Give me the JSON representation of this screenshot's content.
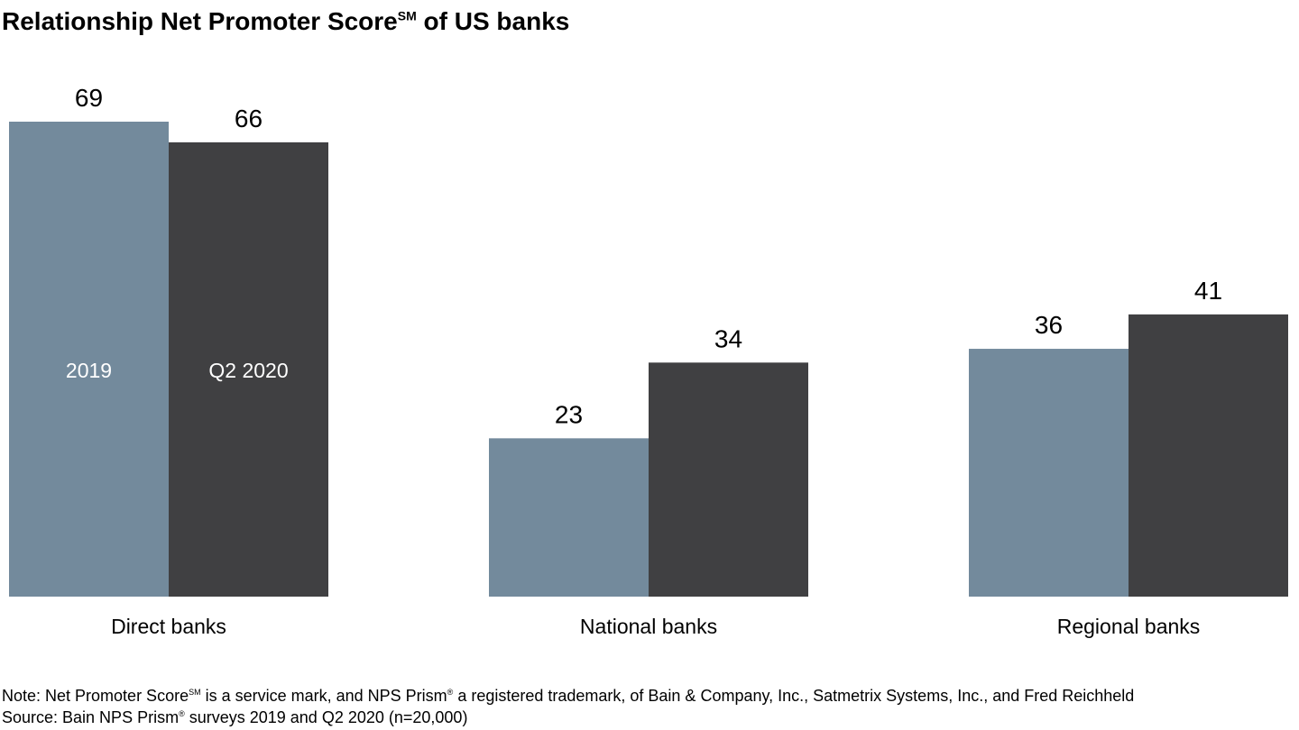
{
  "title": {
    "main": "Relationship Net Promoter Score",
    "sup": "SM",
    "rest": " of US banks"
  },
  "note": {
    "prefix": "Note: Net Promoter Score",
    "sup1": "SM",
    "middle": " is a service mark, and NPS Prism",
    "sup2": "®",
    "suffix": " a registered trademark, of Bain & Company, Inc., Satmetrix Systems, Inc., and Fred Reichheld"
  },
  "source": {
    "prefix": "Source: Bain NPS Prism",
    "sup": "®",
    "suffix": " surveys 2019 and Q2 2020 (n=20,000)"
  },
  "chart_data": {
    "type": "bar",
    "categories": [
      "Direct banks",
      "National banks",
      "Regional banks"
    ],
    "series": [
      {
        "name": "2019",
        "values": [
          69,
          23,
          36
        ],
        "color": "#738a9c"
      },
      {
        "name": "Q2 2020",
        "values": [
          66,
          34,
          41
        ],
        "color": "#404042"
      }
    ],
    "ylim": [
      0,
      69
    ],
    "legend_placement": "inside first category bars",
    "grid": false,
    "xlabel": "",
    "ylabel": ""
  }
}
